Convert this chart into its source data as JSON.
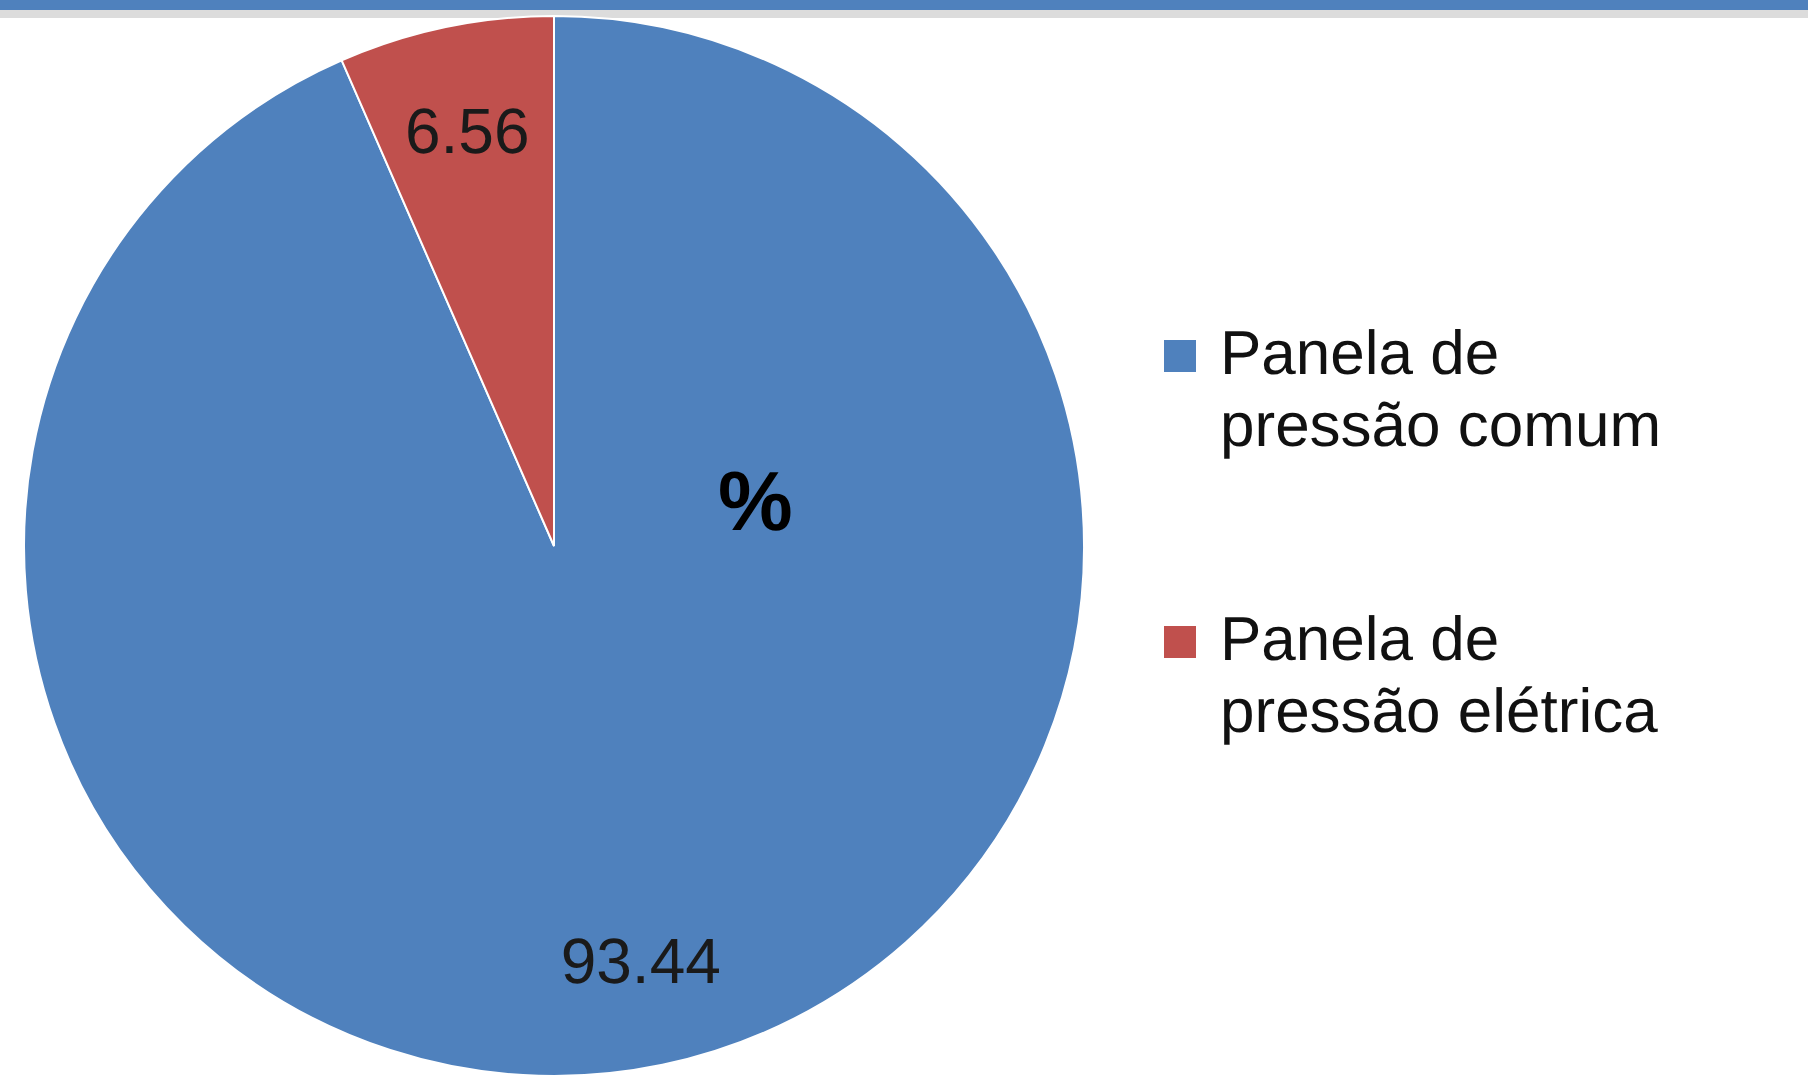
{
  "chart_data": {
    "type": "pie",
    "title": "%",
    "categories": [
      "Panela de pressão comum",
      "Panela de pressão elétrica"
    ],
    "values": [
      93.44,
      6.56
    ],
    "colors": [
      "#4f81bd",
      "#c0504d"
    ],
    "data_labels": true,
    "legend": "right"
  }
}
